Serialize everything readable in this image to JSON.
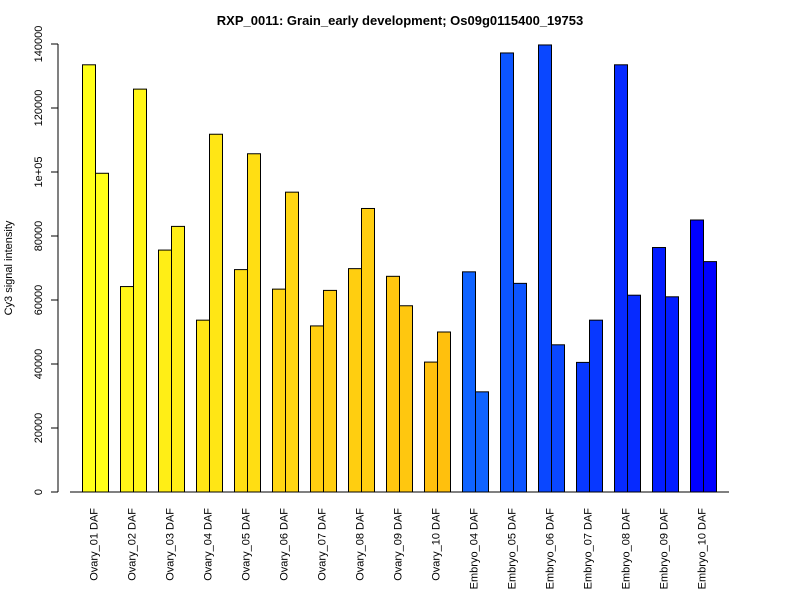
{
  "chart_data": {
    "type": "bar",
    "title": "RXP_0011: Grain_early development; Os09g0115400_19753",
    "xlabel": "",
    "ylabel": "Cy3 signal intensity",
    "ylim": [
      0,
      140000
    ],
    "yticks": [
      0,
      20000,
      40000,
      60000,
      80000,
      100000,
      120000,
      140000
    ],
    "ytick_labels": [
      "0",
      "20000",
      "40000",
      "60000",
      "80000",
      "1e+05",
      "120000",
      "140000"
    ],
    "categories": [
      "Ovary_01 DAF",
      "Ovary_02 DAF",
      "Ovary_03 DAF",
      "Ovary_04 DAF",
      "Ovary_05 DAF",
      "Ovary_06 DAF",
      "Ovary_07 DAF",
      "Ovary_08 DAF",
      "Ovary_09 DAF",
      "Ovary_10 DAF",
      "Embryo_04 DAF",
      "Embryo_05 DAF",
      "Embryo_06 DAF",
      "Embryo_07 DAF",
      "Embryo_08 DAF",
      "Embryo_09 DAF",
      "Embryo_10 DAF"
    ],
    "series": [
      {
        "values": [
          133500,
          64200,
          75600,
          53700,
          69500,
          63400,
          51900,
          69800,
          67400,
          40600,
          68800,
          137200,
          139700,
          40500,
          133500,
          76400,
          85000
        ]
      },
      {
        "values": [
          99600,
          125900,
          83000,
          111800,
          105700,
          93700,
          63000,
          88600,
          58200,
          50000,
          31300,
          65200,
          46000,
          53700,
          61500,
          61000,
          72000
        ]
      }
    ],
    "colors": [
      "#FFFF19",
      "#FFF618",
      "#FFEE16",
      "#FFE615",
      "#FFDE13",
      "#FFD612",
      "#FFCE10",
      "#FFCE10",
      "#FFC70F",
      "#FFC00D",
      "#0F63FF",
      "#0C55FF",
      "#0A47FF",
      "#0838FF",
      "#062AFF",
      "#031CFF",
      "#0000FF"
    ],
    "grid": false,
    "legend": "none"
  }
}
